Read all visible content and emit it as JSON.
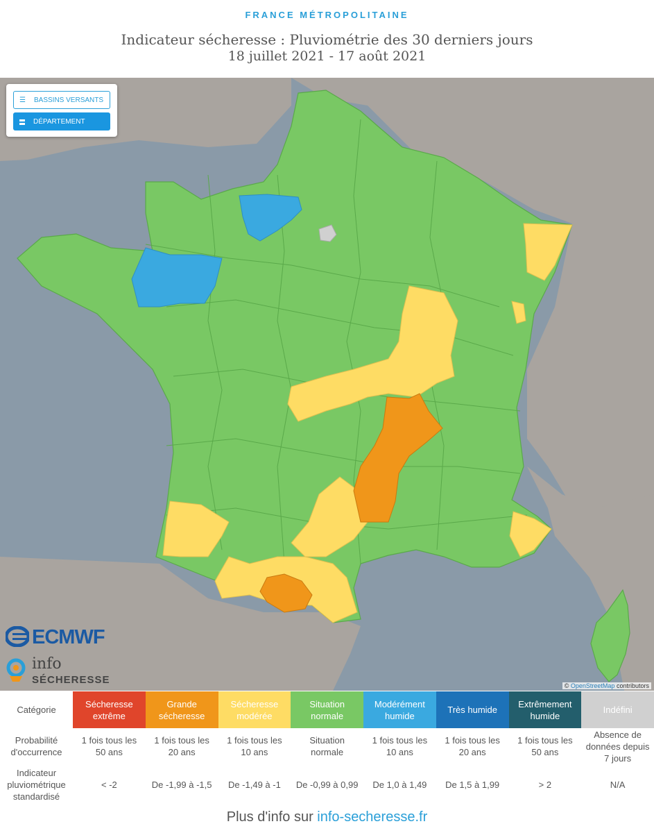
{
  "header": {
    "region": "FRANCE MÉTROPOLITAINE",
    "title": "Indicateur sécheresse : Pluviométrie des 30 derniers jours",
    "dates": "18 juillet 2021 - 17 août 2021"
  },
  "map": {
    "layer_control": {
      "bassins_label": "BASSINS VERSANTS",
      "departement_label": "DÉPARTEMENT",
      "active": "DÉPARTEMENT"
    },
    "attribution": {
      "prefix": "©",
      "link": "OpenStreetMap",
      "suffix": "contributors"
    },
    "colors": {
      "sea": "#8a9aa8",
      "land_outside": "#a9a49f",
      "situation_normale": "#79c864",
      "secheresse_moderee": "#fedc64",
      "grande_secheresse": "#f0961a",
      "moderement_humide": "#3aa9e0",
      "indefini": "#d0d0d0"
    },
    "icons": [
      "layers-icon",
      "layers-icon"
    ]
  },
  "logos": {
    "ecmwf": "ECMWF",
    "info": "info",
    "secheresse": "SÉCHERESSE"
  },
  "legend": {
    "row_labels": {
      "categorie": "Catégorie",
      "probabilite": "Probabilité d'occurrence",
      "indicateur": "Indicateur pluviométrique standardisé"
    },
    "categories": [
      {
        "name": "Sécheresse extrême",
        "color": "#e0452b",
        "probability": "1 fois tous les 50 ans",
        "index": "< -2"
      },
      {
        "name": "Grande sécheresse",
        "color": "#f0961a",
        "probability": "1 fois tous les 20 ans",
        "index": "De -1,99 à -1,5"
      },
      {
        "name": "Sécheresse modérée",
        "color": "#fedc64",
        "probability": "1 fois tous les 10 ans",
        "index": "De -1,49 à -1"
      },
      {
        "name": "Situation normale",
        "color": "#79c864",
        "probability": "Situation normale",
        "index": "De -0,99 à 0,99"
      },
      {
        "name": "Modérément humide",
        "color": "#3aa9e0",
        "probability": "1 fois tous les 10 ans",
        "index": "De 1,0 à 1,49"
      },
      {
        "name": "Très humide",
        "color": "#1d72b8",
        "probability": "1 fois tous les 20 ans",
        "index": "De 1,5 à 1,99"
      },
      {
        "name": "Extrêmement humide",
        "color": "#235e6c",
        "probability": "1 fois tous les 50 ans",
        "index": "> 2"
      },
      {
        "name": "Indéfini",
        "color": "#d0d0d0",
        "probability": "Absence de données depuis 7 jours",
        "index": "N/A"
      }
    ]
  },
  "footer": {
    "prefix": "Plus d'info sur ",
    "link": "info-secheresse.fr"
  }
}
